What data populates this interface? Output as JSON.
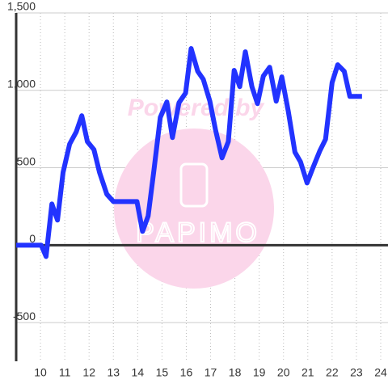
{
  "chart_data": {
    "type": "line",
    "watermark": "Powered by",
    "watermark_logo": "PAPIMO",
    "x": [
      9.0,
      10.03,
      10.23,
      10.47,
      10.7,
      10.93,
      11.2,
      11.47,
      11.7,
      11.93,
      12.2,
      12.43,
      12.73,
      13.0,
      13.97,
      14.2,
      14.43,
      14.67,
      14.93,
      15.2,
      15.43,
      15.7,
      15.97,
      16.2,
      16.47,
      16.7,
      16.97,
      17.2,
      17.47,
      17.73,
      17.97,
      18.2,
      18.43,
      18.7,
      18.93,
      19.17,
      19.43,
      19.7,
      19.93,
      20.2,
      20.47,
      20.7,
      20.97,
      21.23,
      21.5,
      21.73,
      22.0,
      22.23,
      22.5,
      22.73,
      23.23
    ],
    "series": [
      {
        "color": "#2233ff",
        "values": [
          0,
          0,
          -73,
          266,
          162,
          470,
          653,
          731,
          836,
          669,
          617,
          470,
          329,
          282,
          282,
          89,
          188,
          486,
          825,
          925,
          695,
          920,
          982,
          1270,
          1123,
          1071,
          930,
          747,
          564,
          669,
          1129,
          1024,
          1249,
          1024,
          914,
          1092,
          1149,
          930,
          1087,
          862,
          601,
          538,
          402,
          507,
          611,
          684,
          1050,
          1165,
          1123,
          961,
          961
        ]
      }
    ],
    "xlim": [
      9,
      24.3
    ],
    "xticks": [
      10,
      11,
      12,
      13,
      14,
      15,
      16,
      17,
      18,
      19,
      20,
      21,
      22,
      23,
      24
    ],
    "ylim": [
      -750,
      1500
    ],
    "yticks": [
      -500,
      0,
      500,
      {
        "value": 1000,
        "label": "1,000"
      },
      {
        "value": 1500,
        "label": "1,500"
      }
    ],
    "grid": true
  }
}
